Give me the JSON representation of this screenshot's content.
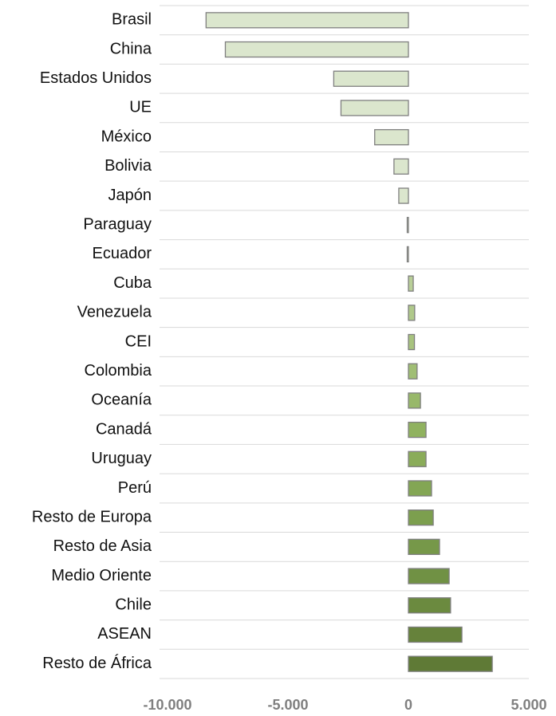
{
  "chart_data": {
    "type": "bar",
    "orientation": "horizontal",
    "categories": [
      "Brasil",
      "China",
      "Estados Unidos",
      "UE",
      "México",
      "Bolivia",
      "Japón",
      "Paraguay",
      "Ecuador",
      "Cuba",
      "Venezuela",
      "CEI",
      "Colombia",
      "Oceanía",
      "Canadá",
      "Uruguay",
      "Perú",
      "Resto de Europa",
      "Resto de Asia",
      "Medio Oriente",
      "Chile",
      "ASEAN",
      "Resto de África"
    ],
    "values": [
      -8400,
      -7600,
      -3100,
      -2800,
      -1400,
      -600,
      -400,
      -50,
      -50,
      200,
      260,
      250,
      360,
      500,
      730,
      730,
      960,
      1030,
      1290,
      1690,
      1750,
      2220,
      3480
    ],
    "colors": [
      "#dbe6cd",
      "#dbe6cd",
      "#dbe6cd",
      "#dbe6cd",
      "#dbe6cd",
      "#dbe6cd",
      "#dbe6cd",
      "#d5e2c4",
      "#d0dfbc",
      "#b9cf98",
      "#b0c98b",
      "#a8c37f",
      "#a0be74",
      "#98b86a",
      "#90b25f",
      "#8aac59",
      "#83a654",
      "#7c9f4e",
      "#769849",
      "#709144",
      "#6b8a3f",
      "#66823b",
      "#5f7a36"
    ],
    "xlim": [
      -10000,
      5000
    ],
    "xticks": [
      {
        "value": -10000,
        "label": "-10.000"
      },
      {
        "value": -5000,
        "label": "-5.000"
      },
      0,
      {
        "value": 5000,
        "label": "5.000"
      }
    ]
  }
}
